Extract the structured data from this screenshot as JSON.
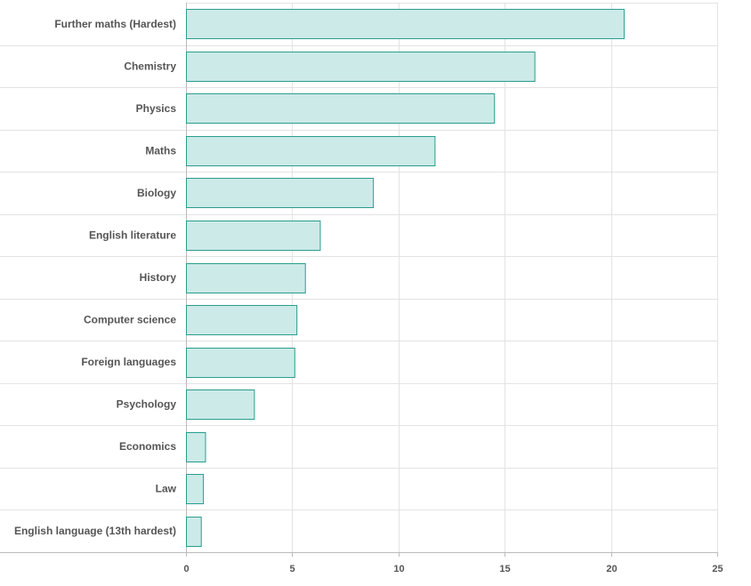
{
  "chart_data": {
    "type": "bar",
    "orientation": "horizontal",
    "title": "",
    "xlabel": "",
    "ylabel": "",
    "xlim": [
      0,
      25
    ],
    "x_ticks": [
      0,
      5,
      10,
      15,
      20,
      25
    ],
    "grid": true,
    "categories": [
      "Further maths (Hardest)",
      "Chemistry",
      "Physics",
      "Maths",
      "Biology",
      "English literature",
      "History",
      "Computer science",
      "Foreign languages",
      "Psychology",
      "Economics",
      "Law",
      "English language (13th hardest)"
    ],
    "values": [
      20.6,
      16.4,
      14.5,
      11.7,
      8.8,
      6.3,
      5.6,
      5.2,
      5.1,
      3.2,
      0.9,
      0.8,
      0.7
    ],
    "colors": {
      "bar_fill": "#cceae7",
      "bar_stroke": "#2a9d8f"
    }
  }
}
